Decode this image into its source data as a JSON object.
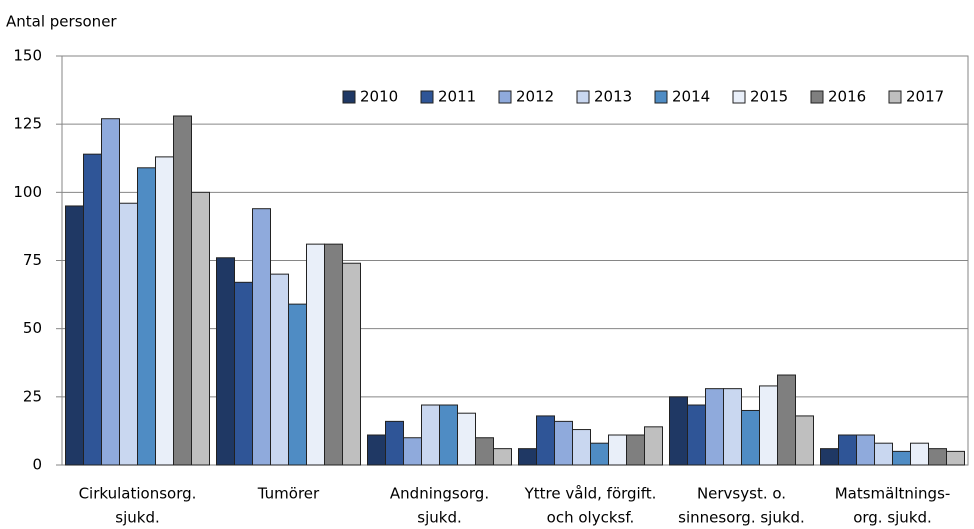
{
  "chart_data": {
    "type": "bar",
    "y_label": "Antal personer",
    "categories": [
      [
        "Cirkulationsorg.",
        "sjukd."
      ],
      [
        "Tumörer"
      ],
      [
        "Andningsorg.",
        "sjukd."
      ],
      [
        "Yttre våld, förgift.",
        "och olycksf."
      ],
      [
        "Nervsyst. o.",
        "sinnesorg. sjukd."
      ],
      [
        "Matsmältnings-",
        "org. sjukd."
      ]
    ],
    "series": [
      {
        "name": "2010",
        "color": "#1f3864",
        "values": [
          95,
          76,
          11,
          6,
          25,
          6
        ]
      },
      {
        "name": "2011",
        "color": "#2f5597",
        "values": [
          114,
          67,
          16,
          18,
          22,
          11
        ]
      },
      {
        "name": "2012",
        "color": "#8faadc",
        "values": [
          127,
          94,
          10,
          16,
          28,
          11
        ]
      },
      {
        "name": "2013",
        "color": "#c9d7f0",
        "values": [
          96,
          70,
          22,
          13,
          28,
          8
        ]
      },
      {
        "name": "2014",
        "color": "#4f8cc4",
        "values": [
          109,
          59,
          22,
          8,
          20,
          5
        ]
      },
      {
        "name": "2015",
        "color": "#e9eff9",
        "values": [
          113,
          81,
          19,
          11,
          29,
          8
        ]
      },
      {
        "name": "2016",
        "color": "#7f7f7f",
        "values": [
          128,
          81,
          10,
          11,
          33,
          6
        ]
      },
      {
        "name": "2017",
        "color": "#bfbfbf",
        "values": [
          100,
          74,
          6,
          14,
          18,
          5
        ]
      }
    ],
    "ylim": [
      0,
      150
    ],
    "yticks": [
      0,
      25,
      50,
      75,
      100,
      125,
      150
    ],
    "grid": true,
    "legend": "top-right"
  }
}
